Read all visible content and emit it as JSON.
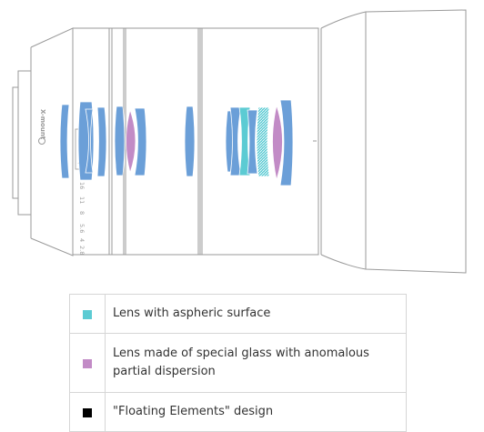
{
  "mount": {
    "brand": "X-mount",
    "scale_marks": [
      "16",
      "11",
      "8",
      "5.6",
      "4",
      "2.8"
    ]
  },
  "colors": {
    "lens_standard": "#6b9fd8",
    "lens_aspheric": "#5ccbd3",
    "lens_special_glass": "#c28bc6",
    "floating_elements": "#000000",
    "outline": "#9a9a9a"
  },
  "legend": [
    {
      "swatch_color": "#5ccbd3",
      "label": "Lens with aspheric surface"
    },
    {
      "swatch_color": "#c28bc6",
      "label": "Lens made of special glass with anomalous partial dispersion"
    },
    {
      "swatch_color": "#000000",
      "label": "\"Floating Elements\" design"
    }
  ]
}
